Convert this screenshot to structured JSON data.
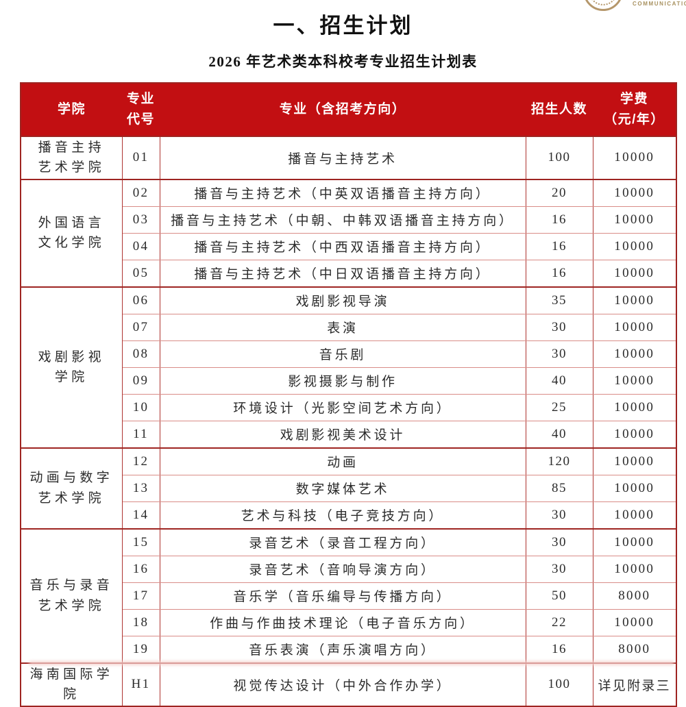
{
  "page": {
    "title": "一、招生计划",
    "subtitle": "2026 年艺术类本科校考专业招生计划表"
  },
  "logo": {
    "text": "COMMUNICATION U",
    "color": "#b5976b"
  },
  "colors": {
    "header_bg": "#c20f12",
    "border_dark": "#9e2421",
    "border_mid": "#ae332f",
    "border_light": "#d98c87"
  },
  "table": {
    "headers": {
      "college": "学院",
      "code": "专业\n代号",
      "major": "专业（含招考方向）",
      "enrollment": "招生人数",
      "tuition": "学费\n（元/年）"
    },
    "groups": [
      {
        "college": "播音主持\n艺术学院",
        "rows": [
          {
            "code": "01",
            "major": "播音与主持艺术",
            "students": "100",
            "tuition": "10000"
          }
        ]
      },
      {
        "college": "外国语言\n文化学院",
        "rows": [
          {
            "code": "02",
            "major": "播音与主持艺术（中英双语播音主持方向）",
            "students": "20",
            "tuition": "10000"
          },
          {
            "code": "03",
            "major": "播音与主持艺术（中朝、中韩双语播音主持方向）",
            "students": "16",
            "tuition": "10000"
          },
          {
            "code": "04",
            "major": "播音与主持艺术（中西双语播音主持方向）",
            "students": "16",
            "tuition": "10000"
          },
          {
            "code": "05",
            "major": "播音与主持艺术（中日双语播音主持方向）",
            "students": "16",
            "tuition": "10000"
          }
        ]
      },
      {
        "college": "戏剧影视\n学院",
        "rows": [
          {
            "code": "06",
            "major": "戏剧影视导演",
            "students": "35",
            "tuition": "10000"
          },
          {
            "code": "07",
            "major": "表演",
            "students": "30",
            "tuition": "10000"
          },
          {
            "code": "08",
            "major": "音乐剧",
            "students": "30",
            "tuition": "10000"
          },
          {
            "code": "09",
            "major": "影视摄影与制作",
            "students": "40",
            "tuition": "10000"
          },
          {
            "code": "10",
            "major": "环境设计（光影空间艺术方向）",
            "students": "25",
            "tuition": "10000"
          },
          {
            "code": "11",
            "major": "戏剧影视美术设计",
            "students": "40",
            "tuition": "10000"
          }
        ]
      },
      {
        "college": "动画与数字\n艺术学院",
        "rows": [
          {
            "code": "12",
            "major": "动画",
            "students": "120",
            "tuition": "10000"
          },
          {
            "code": "13",
            "major": "数字媒体艺术",
            "students": "85",
            "tuition": "10000"
          },
          {
            "code": "14",
            "major": "艺术与科技（电子竞技方向）",
            "students": "30",
            "tuition": "10000"
          }
        ]
      },
      {
        "college": "音乐与录音\n艺术学院",
        "rows": [
          {
            "code": "15",
            "major": "录音艺术（录音工程方向）",
            "students": "30",
            "tuition": "10000"
          },
          {
            "code": "16",
            "major": "录音艺术（音响导演方向）",
            "students": "30",
            "tuition": "10000"
          },
          {
            "code": "17",
            "major": "音乐学（音乐编导与传播方向）",
            "students": "50",
            "tuition": "8000"
          },
          {
            "code": "18",
            "major": "作曲与作曲技术理论（电子音乐方向）",
            "students": "22",
            "tuition": "10000"
          },
          {
            "code": "19",
            "major": "音乐表演（声乐演唱方向）",
            "students": "16",
            "tuition": "8000"
          }
        ]
      },
      {
        "college": "海南国际学院",
        "rows": [
          {
            "code": "H1",
            "major": "视觉传达设计（中外合作办学）",
            "students": "100",
            "tuition": "详见附录三"
          }
        ]
      }
    ]
  }
}
